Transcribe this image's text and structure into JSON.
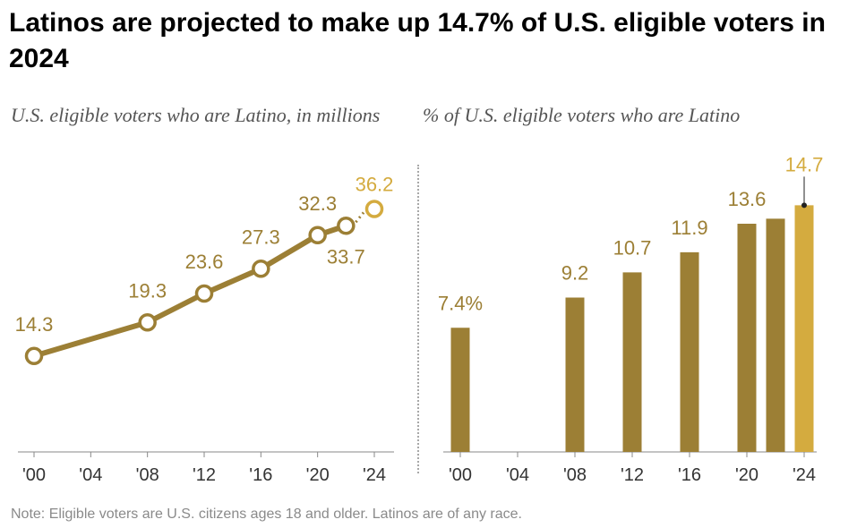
{
  "title": "Latinos are projected to make up 14.7% of U.S. eligible voters in 2024",
  "note": "Note: Eligible voters are U.S. citizens ages 18 and older. Latinos are of any race.",
  "colors": {
    "series": "#9c7f35",
    "projection": "#d4ab3f",
    "axis": "#888888",
    "text": "#222222"
  },
  "chart_data": [
    {
      "type": "line",
      "title": "U.S. eligible voters who are Latino, in millions",
      "categories": [
        "'00",
        "'04",
        "'08",
        "'12",
        "'16",
        "'20",
        "'24"
      ],
      "x": [
        2000,
        2008,
        2012,
        2016,
        2020,
        2022,
        2024
      ],
      "values": [
        14.3,
        19.3,
        23.6,
        27.3,
        32.3,
        33.7,
        36.2
      ],
      "labels": [
        "14.3",
        "19.3",
        "23.6",
        "27.3",
        "32.3",
        "33.7",
        "36.2"
      ],
      "projected_index": 6,
      "xlim": [
        2000,
        2024
      ],
      "ylim": [
        0,
        40
      ]
    },
    {
      "type": "bar",
      "title": "% of U.S. eligible voters who are Latino",
      "categories": [
        "'00",
        "'04",
        "'08",
        "'12",
        "'16",
        "'20",
        "'24"
      ],
      "x": [
        2000,
        2008,
        2012,
        2016,
        2020,
        2022,
        2024
      ],
      "values": [
        7.4,
        9.2,
        10.7,
        11.9,
        13.6,
        13.9,
        14.7
      ],
      "labels": [
        "7.4%",
        "9.2",
        "10.7",
        "11.9",
        "13.6",
        "",
        "14.7"
      ],
      "projected_index": 6,
      "xlim": [
        2000,
        2024
      ],
      "ylim": [
        0,
        16
      ]
    }
  ]
}
